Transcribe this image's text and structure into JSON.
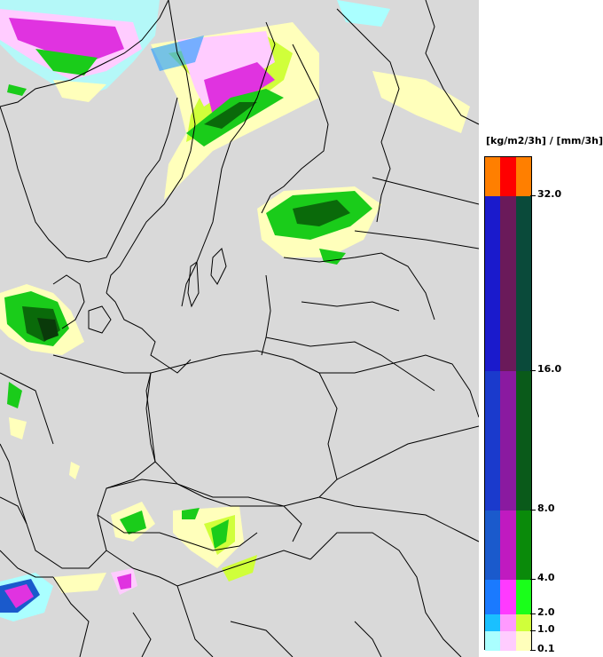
{
  "legend": {
    "unit": "[kg/m2/3h] / [mm/3h]",
    "ticks": [
      "32.0",
      "16.0",
      "8.0",
      "4.0",
      "2.0",
      "1.0",
      "0.1"
    ],
    "classes": [
      {
        "range": ">32.0",
        "colors": [
          "#ff7f00",
          "#ff0000",
          "#ff7f00"
        ]
      },
      {
        "range": "16.0-32.0",
        "colors": [
          "#1a1acc",
          "#6a1a5a",
          "#0a4a3a"
        ]
      },
      {
        "range": "8.0-16.0",
        "colors": [
          "#1a3acc",
          "#8a1aa0",
          "#0a5a1a"
        ]
      },
      {
        "range": "4.0-8.0",
        "colors": [
          "#1a5acc",
          "#c01ac0",
          "#0a8a0a"
        ]
      },
      {
        "range": "2.0-4.0",
        "colors": [
          "#1a7aff",
          "#ff3aff",
          "#1aff1a"
        ]
      },
      {
        "range": "1.0-2.0",
        "colors": [
          "#1ac0ff",
          "#ff9aff",
          "#d0ff3a"
        ]
      },
      {
        "range": "0.1-1.0",
        "colors": [
          "#aaffff",
          "#ffccff",
          "#ffffbb"
        ]
      }
    ]
  },
  "map": {
    "background": "#d9d9d9",
    "border_color": "#000000",
    "precip_colors": {
      "light_green": "#ffffbb",
      "yellow_green": "#d0ff3a",
      "green": "#1acc1a",
      "dark_green": "#0a6a0a",
      "magenta": "#e033e0",
      "light_magenta": "#ffccff",
      "cyan": "#aaffff",
      "blue": "#1a9aff"
    }
  }
}
